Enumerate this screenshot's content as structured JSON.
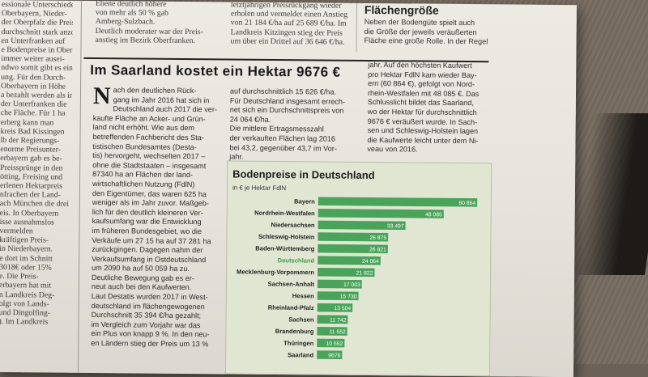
{
  "previous_article": {
    "col_left": [
      "essionale Unterschiede",
      "Oberbayern, Nieder-",
      "der Oberpfalz die Preis-",
      "durchschnitt stark anzo-",
      "en Unterfranken auf",
      "e Bodenpreise in Ober-",
      "immer weiter ausei-",
      "ndwo somit gibt es eine",
      "ung. Für den Durch-",
      "Oberbayern in Höhe",
      "a bezahlt werden als in",
      "der Unterfranken die",
      "che Fläche. Für 1 ha",
      "erberg kann man",
      "kreis Bad Kissingen",
      "",
      "lb der Regierungs-",
      "enorme Preisunter-",
      "erbayern gab es be-",
      "Preissprünge in den",
      "ötting, Freising und",
      "erlenen Hektarpreis",
      "nfrachen der Land-",
      "ach München die drei",
      "eis. In Oberbayern",
      "isse ausnahmslos",
      "vermelden",
      "kräftigen Preis-",
      "in Niederbayern.",
      "e dort im Schnitt",
      "3018€ oder 15%",
      "e. Die Preis-",
      "erbayern hat mit",
      "n Landkreis Deg-",
      "olgt von Lands-",
      "und Dingolfing-",
      "). Im Landkreis"
    ],
    "col_mid1": [
      "Ebene deutlich höhere",
      "von mehr als 50 % gab",
      "Amberg-Sulzbach.",
      "Deutlich moderater war der Preis-",
      "anstieg im Bezirk Oberfranken."
    ],
    "col_mid2": [
      "letztjährigen Preisrückgang wieder",
      "erholen und vermeldet einen Anstieg",
      "von 21 184 €/ha auf 25 689 €/ha. Im",
      "Landkreis Kitzingen stieg der Preis",
      "um über ein Drittel auf 36 646 €/ha."
    ]
  },
  "sidebar_box": {
    "heading": "Flächengröße",
    "lines": [
      "Neben der Bodengüte spielt auch",
      "die Größe der jeweils veräußerten",
      "Fläche eine große Rolle. In der Regel"
    ]
  },
  "article": {
    "headline": "Im Saarland kostet ein Hektar 9676 €",
    "dropcap": "N",
    "col1": [
      "ach den deutlichen Rück-",
      "gang im Jahr 2016 hat sich in",
      "Deutschland auch 2017 die ver-",
      "kaufte Fläche an Acker- und Grün-",
      "land nicht erhöht. Wie aus dem",
      "betreffenden Fachbericht des Sta-",
      "tistischen Bundesamtes (Desta-",
      "tis) hervorgeht, wechselten 2017 –",
      "ohne die Stadtstaaten – insgesamt",
      "87340 ha an Flächen der land-",
      "wirtschaftlichen Nutzung (FdlN)",
      "den Eigentümer, das waren 625 ha",
      "weniger als im Jahr zuvor. Maßgeb-",
      "lich für den deutlich kleineren Ver-",
      "kaufsumfang war die Entwicklung",
      "im früheren Bundesgebiet, wo die",
      "Verkäufe um 27 15 ha auf 37 281 ha",
      "zurückgingen. Dagegen nahm der",
      "Verkaufsumfang in Ostdeutschland",
      "um 2090 ha auf 50 059 ha zu.",
      "Deutliche Bewegung gab es er-",
      "neut auch bei den Kaufwerten.",
      "Laut Destatis wurden 2017 in West-",
      "deutschland im flächengewogenen",
      "Durchschnitt 35 394 €/ha gezahlt;",
      "im Vergleich zum Vorjahr war das",
      "ein Plus von knapp 9 %. In den neu-",
      "en Ländern stieg der Preis um 13 %"
    ],
    "col2": [
      "auf durchschnittlich 15 626 €/ha.",
      "Für Deutschland insgesamt errech-",
      "net sich ein Durchschnittspreis von",
      "24 064 €/ha.",
      "Die mittlere Ertragsmesszahl",
      "der verkauften Flächen lag 2016",
      "bei 43,2, gegenüber 43,7 im Vor-",
      "jahr."
    ],
    "col3": [
      "jahr. Auf den höchsten Kaufwert",
      "pro Hektar FdlN kam wieder Bay-",
      "ern (60 864 €), gefolgt von Nord-",
      "rhein-Westfalen mit 48 085 €. Das",
      "Schlusslicht bildet das Saarland,",
      "wo der Hektar für durchschnittlich",
      "9676 € veräußert wurde. In Sach-",
      "sen und Schleswig-Holstein lagen",
      "die Kaufwerte leicht unter dem Ni-",
      "veau von 2016."
    ]
  },
  "colors": {
    "bar": "#4aa35a",
    "highlight_label": "#3f9a4f",
    "chart_bg": "#e1e6d3"
  },
  "chart_data": {
    "type": "bar",
    "orientation": "horizontal",
    "title": "Bodenpreise in Deutschland",
    "ylabel": "in € je Hektar FdlN",
    "categories": [
      "Bayern",
      "Nordrhein-Westfalen",
      "Niedersachsen",
      "Schleswig-Holstein",
      "Baden-Württemberg",
      "Deutschland",
      "Mecklenburg-Vorpommern",
      "Sachsen-Anhalt",
      "Hessen",
      "Rheinland-Pfalz",
      "Sachsen",
      "Brandenburg",
      "Thüringen",
      "Saarland"
    ],
    "values": [
      60864,
      48085,
      33497,
      26875,
      26821,
      24064,
      21822,
      17003,
      15730,
      13504,
      11742,
      11552,
      10552,
      9676
    ],
    "value_labels": [
      "60 864",
      "48 085",
      "33 497",
      "26 875",
      "26 821",
      "24 064",
      "21 822",
      "17 003",
      "15 730",
      "13 504",
      "11 742",
      "11 552",
      "10 552",
      "9676"
    ],
    "highlight": "Deutschland",
    "xlim": [
      0,
      62000
    ]
  }
}
